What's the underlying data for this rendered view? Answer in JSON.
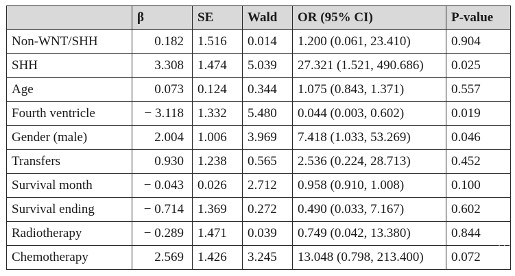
{
  "table": {
    "headers": [
      "",
      "β",
      "SE",
      "Wald",
      "OR (95% CI)",
      "P-value"
    ],
    "rows": [
      {
        "name": "Non-WNT/SHH",
        "beta": "0.182",
        "se": "1.516",
        "wald": "0.014",
        "or": "1.200 (0.061, 23.410)",
        "p": "0.904"
      },
      {
        "name": "SHH",
        "beta": "3.308",
        "se": "1.474",
        "wald": "5.039",
        "or": "27.321 (1.521, 490.686)",
        "p": "0.025"
      },
      {
        "name": "Age",
        "beta": "0.073",
        "se": "0.124",
        "wald": "0.344",
        "or": "1.075 (0.843, 1.371)",
        "p": "0.557"
      },
      {
        "name": "Fourth ventricle",
        "beta": "− 3.118",
        "se": "1.332",
        "wald": "5.480",
        "or": "0.044 (0.003, 0.602)",
        "p": "0.019"
      },
      {
        "name": "Gender (male)",
        "beta": "2.004",
        "se": "1.006",
        "wald": "3.969",
        "or": "7.418 (1.033, 53.269)",
        "p": "0.046"
      },
      {
        "name": "Transfers",
        "beta": "0.930",
        "se": "1.238",
        "wald": "0.565",
        "or": "2.536 (0.224, 28.713)",
        "p": "0.452"
      },
      {
        "name": "Survival month",
        "beta": "− 0.043",
        "se": "0.026",
        "wald": "2.712",
        "or": "0.958 (0.910, 1.008)",
        "p": "0.100"
      },
      {
        "name": "Survival ending",
        "beta": "− 0.714",
        "se": "1.369",
        "wald": "0.272",
        "or": "0.490 (0.033, 7.167)",
        "p": "0.602"
      },
      {
        "name": "Radiotherapy",
        "beta": "− 0.289",
        "se": "1.471",
        "wald": "0.039",
        "or": "0.749 (0.042, 13.380)",
        "p": "0.844"
      },
      {
        "name": "Chemotherapy",
        "beta": "2.569",
        "se": "1.426",
        "wald": "3.245",
        "or": "13.048 (0.798, 213.400)",
        "p": "0.072"
      }
    ]
  },
  "colors": {
    "header_bg": "#d9d9d9",
    "border": "#2a2a2a",
    "text": "#1a1a1a"
  },
  "watermark": "· · ·"
}
